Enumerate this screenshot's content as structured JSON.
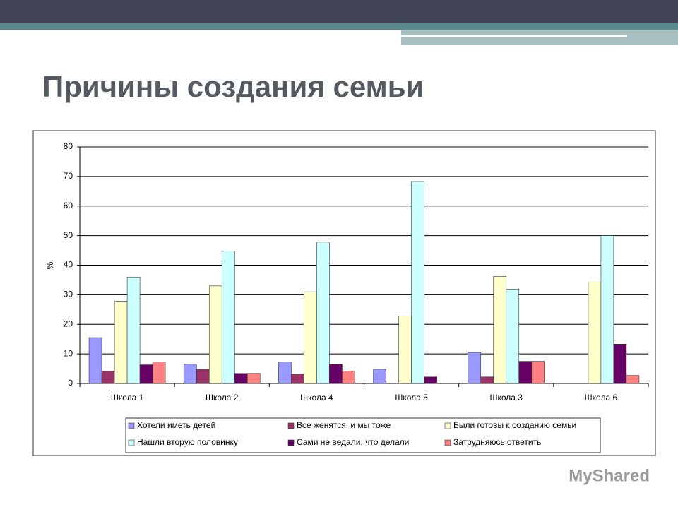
{
  "title": "Причины создания семьи",
  "watermark": "MyShared",
  "chart_data": {
    "type": "bar",
    "y_label": "%",
    "categories": [
      "Школа 1",
      "Школа 2",
      "Школа 4",
      "Школа 5",
      "Школа 3",
      "Школа 6"
    ],
    "series": [
      {
        "name": "Хотели иметь детей",
        "color": "#9999ff",
        "values": [
          15.5,
          6.5,
          7.3,
          4.8,
          10.5,
          0
        ]
      },
      {
        "name": "Все женятся, и мы тоже",
        "color": "#993366",
        "values": [
          4.2,
          4.8,
          3.2,
          0,
          2.2,
          0
        ]
      },
      {
        "name": "Были готовы к созданию семьи",
        "color": "#ffffcc",
        "values": [
          27.8,
          33,
          31,
          22.8,
          36.2,
          34.3
        ]
      },
      {
        "name": "Нашли вторую половинку",
        "color": "#ccffff",
        "values": [
          36,
          44.8,
          47.8,
          68.3,
          31.9,
          50
        ]
      },
      {
        "name": "Сами не ведали, что делали",
        "color": "#660066",
        "values": [
          6.3,
          3.4,
          6.5,
          2.2,
          7.5,
          13.3
        ]
      },
      {
        "name": "Затрудняюсь ответить",
        "color": "#ff8080",
        "values": [
          7.3,
          3.4,
          4.2,
          0,
          7.5,
          2.7
        ]
      }
    ],
    "ylim": [
      0,
      80
    ],
    "yticks": [
      0,
      10,
      20,
      30,
      40,
      50,
      60,
      70,
      80
    ],
    "grid": true
  }
}
